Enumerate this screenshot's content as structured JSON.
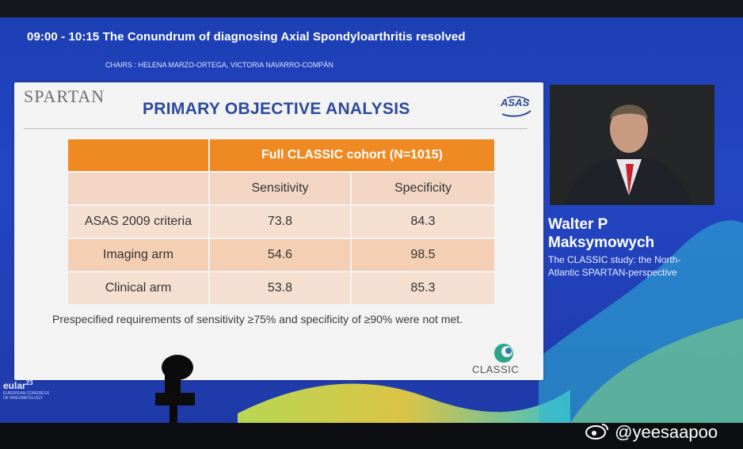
{
  "session": {
    "time_title": "09:00 - 10:15   The Conundrum of diagnosing Axial Spondyloarthritis resolved",
    "chairs": "CHAIRS : HELENA MARZO-ORTEGA, VICTORIA NAVARRO-COMPÁN"
  },
  "slide": {
    "logo_text": "SPARTAN",
    "title": "PRIMARY OBJECTIVE ANALYSIS",
    "asas_logo": "ASAS",
    "table": {
      "header": "Full CLASSIC cohort (N=1015)",
      "columns": [
        "Sensitivity",
        "Specificity"
      ],
      "rows": [
        {
          "label": "ASAS 2009 criteria",
          "sensitivity": "73.8",
          "specificity": "84.3"
        },
        {
          "label": "Imaging arm",
          "sensitivity": "54.6",
          "specificity": "98.5"
        },
        {
          "label": "Clinical arm",
          "sensitivity": "53.8",
          "specificity": "85.3"
        }
      ]
    },
    "footnote": "Prespecified requirements of sensitivity ≥75% and specificity of ≥90% were not met.",
    "classic_logo": "CLASSIC"
  },
  "speaker": {
    "name_line1": "Walter P",
    "name_line2": "Maksymowych",
    "talk_title": "The CLASSIC study: the North-Atlantic SPARTAN-perspective"
  },
  "conference": {
    "logo": "eular",
    "year": "23",
    "small_text": "EUROPEAN CONGRESS OF RHEUMATOLOGY"
  },
  "watermark": {
    "text": "@yeesaapoo",
    "icon": "weibo-icon"
  },
  "colors": {
    "screen_blue": "#2346c4",
    "table_orange": "#ef8a22",
    "title_blue": "#2c4a9c"
  }
}
